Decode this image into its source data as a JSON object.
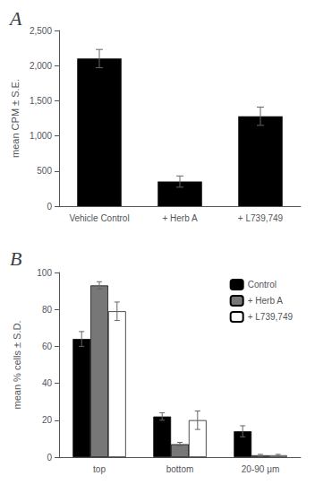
{
  "chart_data": [
    {
      "type": "bar",
      "title": "A",
      "categories": [
        "Vehicle Control",
        "+ Herb A",
        "+ L739,749"
      ],
      "values": [
        2100,
        350,
        1280
      ],
      "errors": [
        130,
        80,
        130
      ],
      "color": "#000000",
      "ylabel": "mean CPM ± S.E.",
      "ylim": [
        0,
        2500
      ],
      "yticks": [
        0,
        500,
        1000,
        1500,
        2000,
        2500
      ],
      "grid": false
    },
    {
      "type": "bar",
      "title": "B",
      "categories": [
        "top",
        "bottom",
        "20-90 μm"
      ],
      "series": [
        {
          "name": "Control",
          "color": "#000000",
          "values": [
            64,
            22,
            14
          ],
          "errors": [
            4,
            2,
            3
          ]
        },
        {
          "name": "+ Herb A",
          "color": "#777777",
          "values": [
            93,
            7,
            1
          ],
          "errors": [
            2,
            1,
            0.5
          ]
        },
        {
          "name": "+ L739,749",
          "color": "#ffffff",
          "values": [
            79,
            20,
            1
          ],
          "errors": [
            5,
            5,
            0.5
          ]
        }
      ],
      "ylabel": "mean % cells ± S.D.",
      "ylim": [
        0,
        100
      ],
      "yticks": [
        0,
        20,
        40,
        60,
        80,
        100
      ],
      "grid": false,
      "legend": "upper right"
    }
  ]
}
